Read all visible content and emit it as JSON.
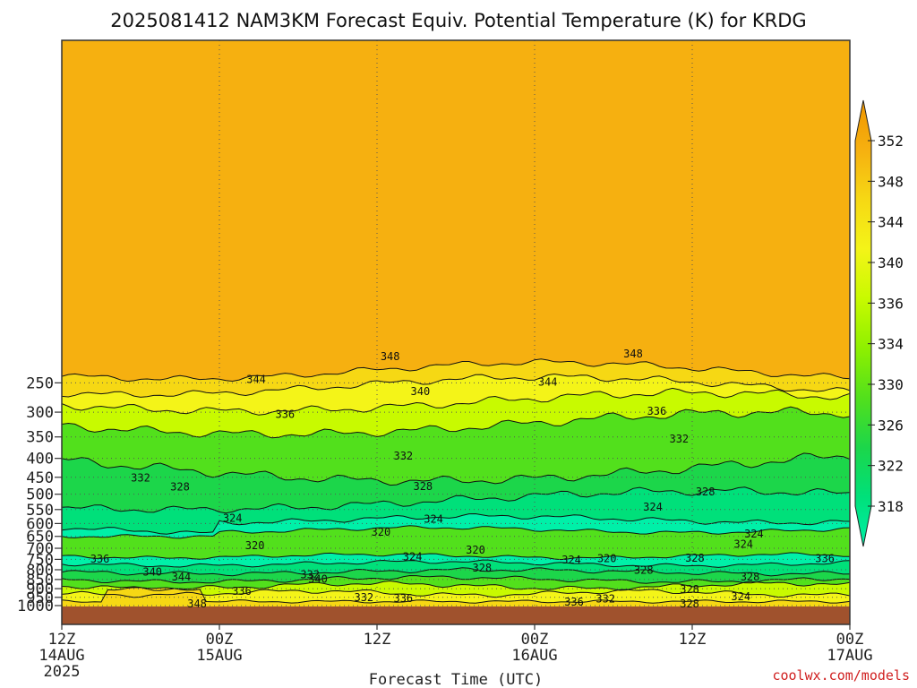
{
  "chart_data": {
    "type": "heatmap",
    "title": "2025081412 NAM3KM Forecast Equiv. Potential Temperature (K) for KRDG",
    "xlabel": "Forecast Time (UTC)",
    "ylabel": "",
    "credit": "coolwx.com/models",
    "y_axis": {
      "scale": "pressure (hPa), reversed",
      "ticks": [
        250,
        300,
        350,
        400,
        450,
        500,
        550,
        600,
        650,
        700,
        750,
        800,
        850,
        900,
        950,
        1000
      ],
      "tick_labels": [
        "250",
        "300",
        "350",
        "400",
        "450",
        "500",
        "550",
        "600",
        "650",
        "700",
        "750",
        "800",
        "850",
        "900",
        "950",
        "1000"
      ],
      "range_hpa": [
        200,
        1025
      ]
    },
    "x_axis": {
      "range_hours": [
        0,
        60
      ],
      "ticks": [
        {
          "hour": 0,
          "line1": "12Z",
          "line2": "14AUG",
          "line3": "2025"
        },
        {
          "hour": 12,
          "line1": "00Z",
          "line2": "15AUG",
          "line3": ""
        },
        {
          "hour": 24,
          "line1": "12Z",
          "line2": "",
          "line3": ""
        },
        {
          "hour": 36,
          "line1": "00Z",
          "line2": "16AUG",
          "line3": ""
        },
        {
          "hour": 48,
          "line1": "12Z",
          "line2": "",
          "line3": ""
        },
        {
          "hour": 60,
          "line1": "00Z",
          "line2": "17AUG",
          "line3": ""
        }
      ]
    },
    "grid": true,
    "colorbar": {
      "levels": [
        318,
        322,
        326,
        330,
        334,
        336,
        340,
        344,
        348,
        352
      ],
      "colors": [
        "#00f0a8",
        "#00e07a",
        "#1cd64a",
        "#52e01c",
        "#8ef000",
        "#c8fa00",
        "#f4f418",
        "#f6d814",
        "#f6b010",
        "#f09600"
      ],
      "labels": [
        "318",
        "322",
        "326",
        "330",
        "334",
        "336",
        "340",
        "344",
        "348",
        "352"
      ]
    },
    "surface_color": "#a0522d",
    "contour_labels": [
      {
        "text": "348",
        "h": 25.0,
        "p": 212
      },
      {
        "text": "348",
        "h": 43.5,
        "p": 209
      },
      {
        "text": "344",
        "h": 14.8,
        "p": 245
      },
      {
        "text": "344",
        "h": 37.0,
        "p": 249
      },
      {
        "text": "340",
        "h": 27.3,
        "p": 264
      },
      {
        "text": "336",
        "h": 17.0,
        "p": 304
      },
      {
        "text": "336",
        "h": 45.3,
        "p": 298
      },
      {
        "text": "332",
        "h": 47.0,
        "p": 354
      },
      {
        "text": "332",
        "h": 26.0,
        "p": 394
      },
      {
        "text": "332",
        "h": 6.0,
        "p": 452
      },
      {
        "text": "328",
        "h": 9.0,
        "p": 478
      },
      {
        "text": "328",
        "h": 27.5,
        "p": 477
      },
      {
        "text": "328",
        "h": 49.0,
        "p": 492
      },
      {
        "text": "324",
        "h": 13.0,
        "p": 580
      },
      {
        "text": "324",
        "h": 28.3,
        "p": 584
      },
      {
        "text": "324",
        "h": 45.0,
        "p": 541
      },
      {
        "text": "324",
        "h": 52.7,
        "p": 640
      },
      {
        "text": "324",
        "h": 51.9,
        "p": 682
      },
      {
        "text": "324",
        "h": 26.7,
        "p": 738
      },
      {
        "text": "324",
        "h": 38.8,
        "p": 753
      },
      {
        "text": "320",
        "h": 24.3,
        "p": 633
      },
      {
        "text": "320",
        "h": 14.7,
        "p": 688
      },
      {
        "text": "320",
        "h": 31.5,
        "p": 708
      },
      {
        "text": "320",
        "h": 41.5,
        "p": 746
      },
      {
        "text": "328",
        "h": 48.2,
        "p": 745
      },
      {
        "text": "328",
        "h": 32.0,
        "p": 791
      },
      {
        "text": "328",
        "h": 44.3,
        "p": 802
      },
      {
        "text": "328",
        "h": 52.4,
        "p": 836
      },
      {
        "text": "328",
        "h": 47.8,
        "p": 905
      },
      {
        "text": "328",
        "h": 47.8,
        "p": 990
      },
      {
        "text": "336",
        "h": 2.9,
        "p": 748
      },
      {
        "text": "336",
        "h": 58.1,
        "p": 746
      },
      {
        "text": "340",
        "h": 6.9,
        "p": 812
      },
      {
        "text": "344",
        "h": 9.1,
        "p": 837
      },
      {
        "text": "332",
        "h": 18.9,
        "p": 824
      },
      {
        "text": "340",
        "h": 19.5,
        "p": 848
      },
      {
        "text": "336",
        "h": 13.7,
        "p": 915
      },
      {
        "text": "348",
        "h": 10.3,
        "p": 989
      },
      {
        "text": "332",
        "h": 23.0,
        "p": 952
      },
      {
        "text": "336",
        "h": 26.0,
        "p": 957
      },
      {
        "text": "332",
        "h": 41.4,
        "p": 960
      },
      {
        "text": "336",
        "h": 39.0,
        "p": 979
      },
      {
        "text": "324",
        "h": 51.7,
        "p": 947
      }
    ]
  }
}
